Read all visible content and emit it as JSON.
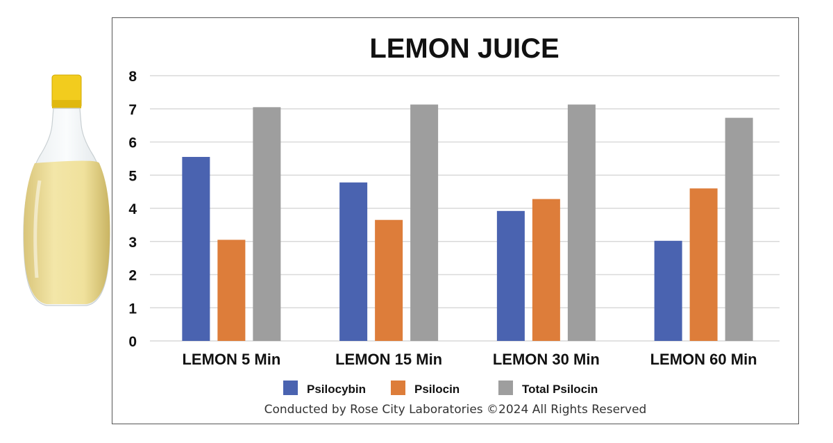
{
  "chart_data": {
    "type": "bar",
    "title": "LEMON JUICE",
    "categories": [
      "LEMON 5 Min",
      "LEMON 15 Min",
      "LEMON 30 Min",
      "LEMON 60 Min"
    ],
    "series": [
      {
        "name": "Psilocybin",
        "color": "#4a63b0",
        "values": [
          5.55,
          4.78,
          3.92,
          3.02
        ]
      },
      {
        "name": "Psilocin",
        "color": "#dd7d3a",
        "values": [
          3.05,
          3.65,
          4.28,
          4.6
        ]
      },
      {
        "name": "Total Psilocin",
        "color": "#9e9e9e",
        "values": [
          7.05,
          7.13,
          7.13,
          6.73
        ]
      }
    ],
    "yticks": [
      "0",
      "1",
      "2",
      "3",
      "4",
      "5",
      "6",
      "7",
      "8"
    ],
    "ylim": [
      0,
      8
    ],
    "grid": true,
    "legend_position": "bottom",
    "xlabel": "",
    "ylabel": ""
  },
  "footer": "Conducted by Rose City Laboratories ©2024 All Rights Reserved",
  "colors": {
    "gridline": "#d9d9d9",
    "frame": "#555555",
    "text": "#111111"
  }
}
